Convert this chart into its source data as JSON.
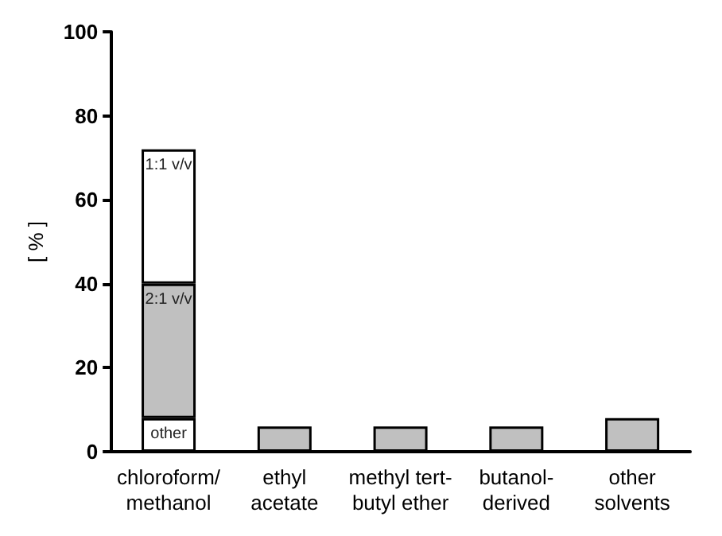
{
  "chart_data": {
    "type": "bar",
    "stacked": true,
    "ylabel": "[ % ]",
    "categories": [
      "chloroform/\nmethanol",
      "ethyl\nacetate",
      "methyl tert-\nbutyl ether",
      "butanol-\nderived",
      "other\nsolvents"
    ],
    "series": [
      {
        "color": "#c0c0c0",
        "values": [
          null,
          6,
          6,
          6,
          8
        ]
      },
      {
        "name": "other",
        "color": "#ffffff",
        "values": [
          8,
          null,
          null,
          null,
          null
        ]
      },
      {
        "name": "2:1 v/v",
        "color": "#c0c0c0",
        "values": [
          32,
          null,
          null,
          null,
          null
        ]
      },
      {
        "name": "1:1 v/v",
        "color": "#ffffff",
        "values": [
          32,
          null,
          null,
          null,
          null
        ]
      }
    ],
    "ylim": [
      0,
      100
    ],
    "yticks": [
      0,
      20,
      40,
      60,
      80,
      100
    ],
    "grid": false,
    "legend": false
  }
}
